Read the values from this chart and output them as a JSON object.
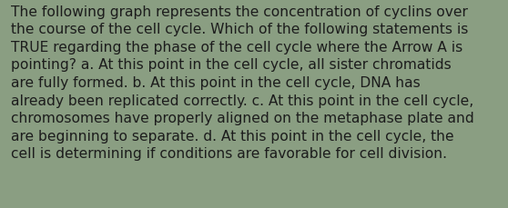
{
  "background_color": "#8a9e82",
  "text_color": "#1c1c1c",
  "lines": [
    "The following graph represents the concentration of cyclins over",
    "the course of the cell cycle. Which of the following statements is",
    "TRUE regarding the phase of the cell cycle where the Arrow A is",
    "pointing? a. At this point in the cell cycle, all sister chromatids",
    "are fully formed. b. At this point in the cell cycle, DNA has",
    "already been replicated correctly. c. At this point in the cell cycle,",
    "chromosomes have properly aligned on the metaphase plate and",
    "are beginning to separate. d. At this point in the cell cycle, the",
    "cell is determining if conditions are favorable for cell division."
  ],
  "font_size": 11.2,
  "fig_width": 5.58,
  "fig_height": 2.3,
  "dpi": 100
}
